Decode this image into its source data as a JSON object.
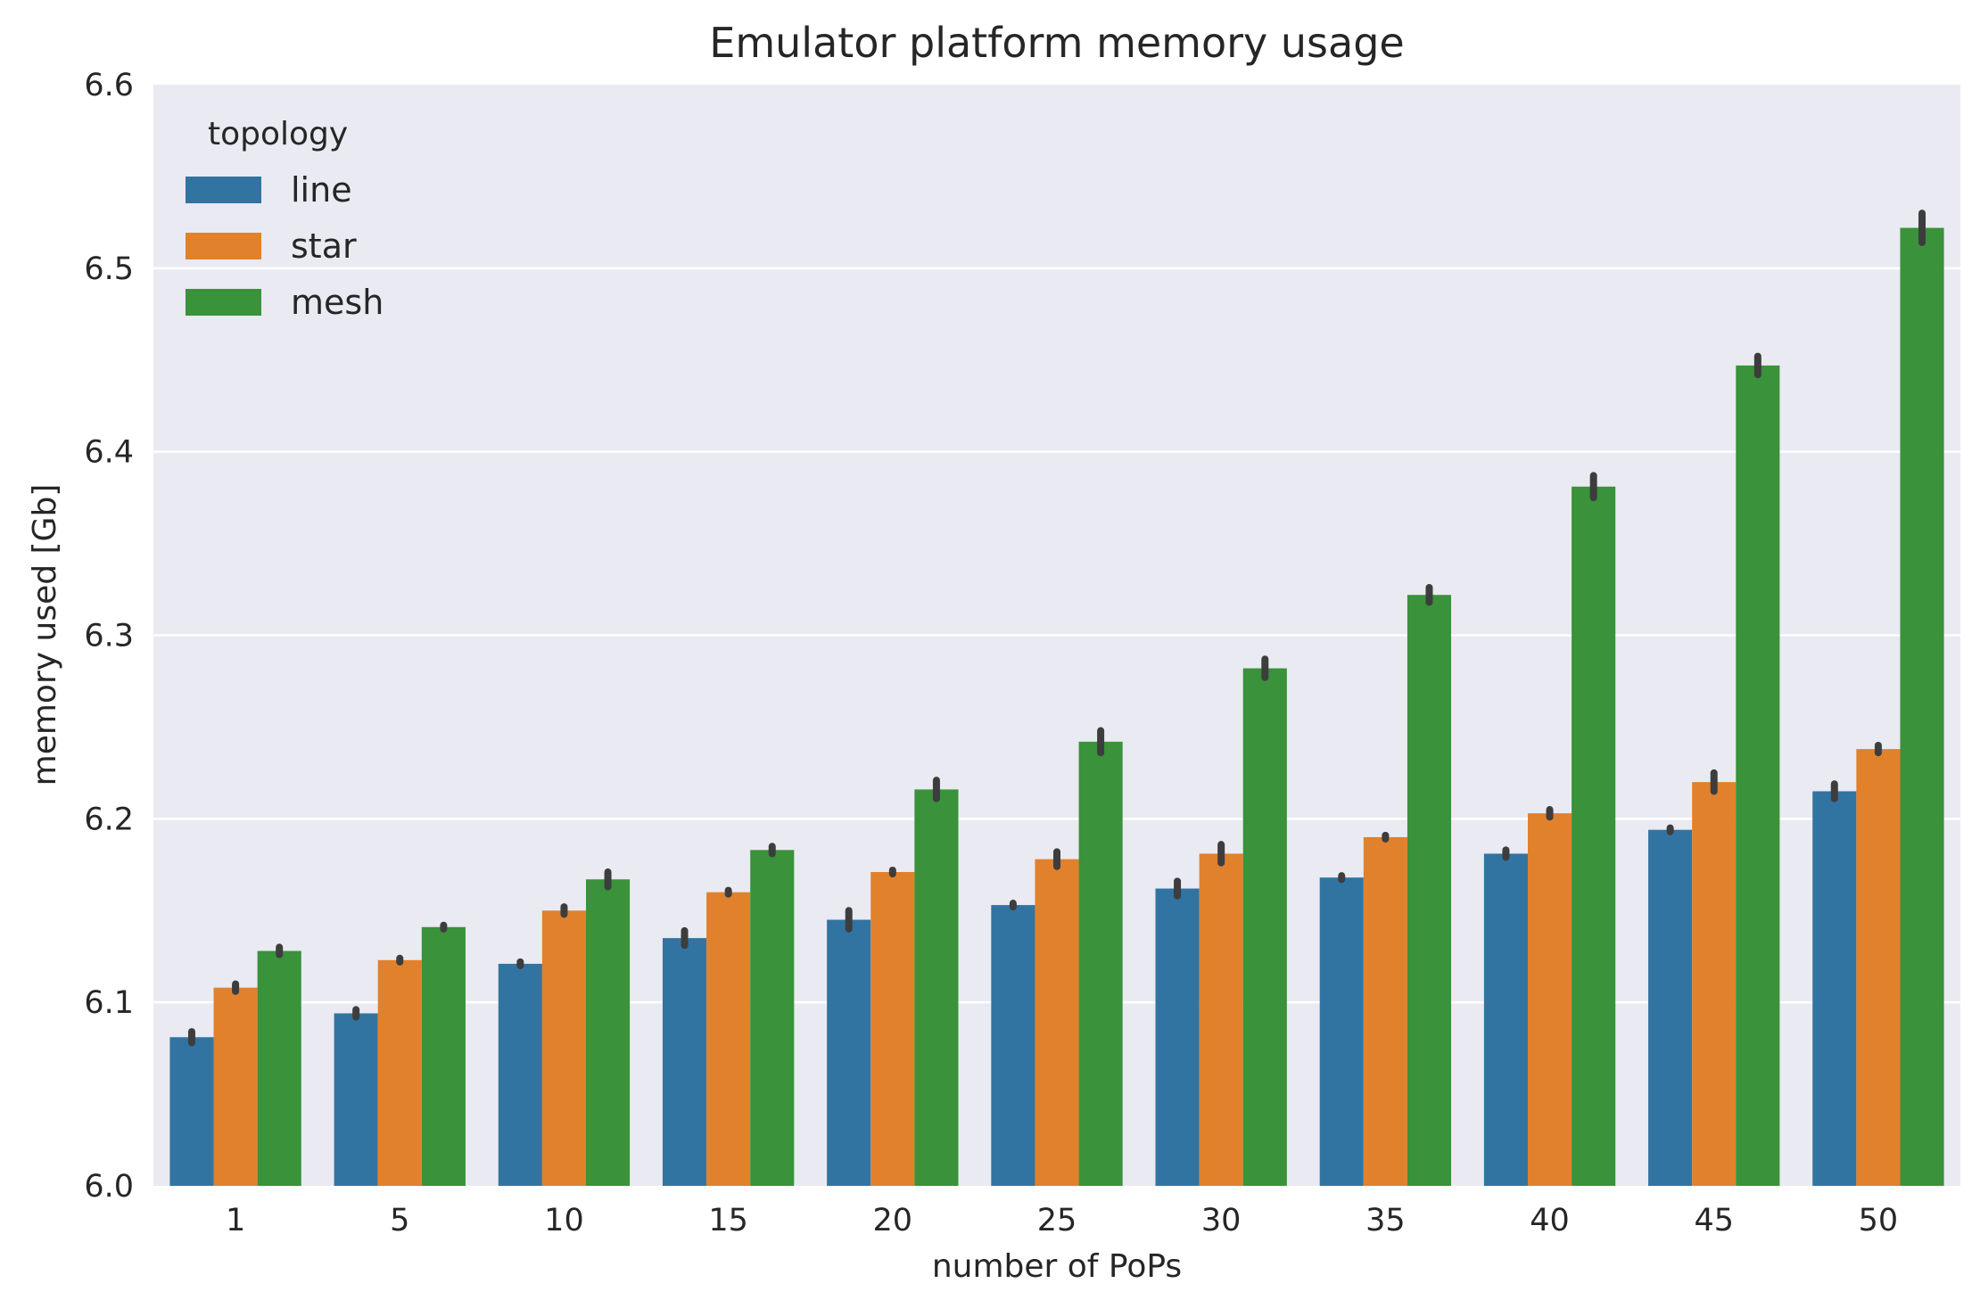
{
  "chart_data": {
    "type": "bar",
    "title": "Emulator platform memory usage",
    "xlabel": "number of PoPs",
    "ylabel": "memory used [Gb]",
    "ylim": [
      6.0,
      6.6
    ],
    "yticks": [
      "6.0",
      "6.1",
      "6.2",
      "6.3",
      "6.4",
      "6.5",
      "6.6"
    ],
    "categories": [
      "1",
      "5",
      "10",
      "15",
      "20",
      "25",
      "30",
      "35",
      "40",
      "45",
      "50"
    ],
    "legend": {
      "title": "topology",
      "placement": "top-left"
    },
    "grid": true,
    "series": [
      {
        "name": "line",
        "color": "#3274a1",
        "values": [
          6.081,
          6.094,
          6.121,
          6.135,
          6.145,
          6.153,
          6.162,
          6.168,
          6.181,
          6.194,
          6.215
        ],
        "err": [
          0.003,
          0.002,
          0.001,
          0.004,
          0.005,
          0.001,
          0.004,
          0.001,
          0.002,
          0.001,
          0.004
        ]
      },
      {
        "name": "star",
        "color": "#e1812c",
        "values": [
          6.108,
          6.123,
          6.15,
          6.16,
          6.171,
          6.178,
          6.181,
          6.19,
          6.203,
          6.22,
          6.238
        ],
        "err": [
          0.002,
          0.001,
          0.002,
          0.001,
          0.001,
          0.004,
          0.005,
          0.001,
          0.002,
          0.005,
          0.002
        ]
      },
      {
        "name": "mesh",
        "color": "#3a923a",
        "values": [
          6.128,
          6.141,
          6.167,
          6.183,
          6.216,
          6.242,
          6.282,
          6.322,
          6.381,
          6.447,
          6.522
        ],
        "err": [
          0.002,
          0.001,
          0.004,
          0.002,
          0.005,
          0.006,
          0.005,
          0.004,
          0.006,
          0.005,
          0.008
        ]
      }
    ]
  }
}
